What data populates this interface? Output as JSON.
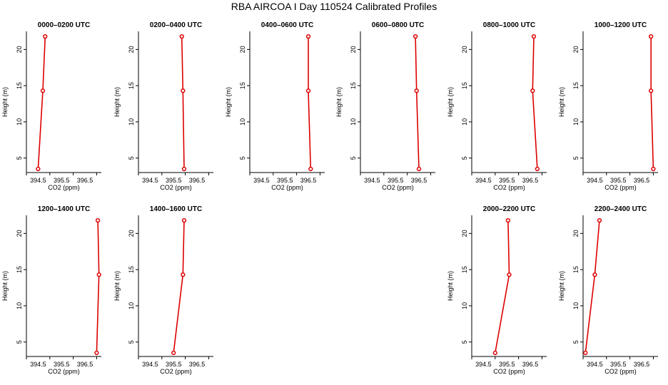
{
  "title": "RBA AIRCOA I  Day 110524  Calibrated Profiles",
  "colors": {
    "series": "#dd0000",
    "axis": "#000000"
  },
  "chart_data": [
    {
      "type": "line",
      "title": "0000–0200 UTC",
      "xlabel": "CO2 (ppm)",
      "ylabel": "Height (m)",
      "xlim": [
        394.0,
        397.2
      ],
      "ylim": [
        3,
        22.5
      ],
      "xticks": [
        "394.5",
        "395.5",
        "396.5"
      ],
      "yticks": [
        "5",
        "10",
        "15",
        "20"
      ],
      "x": [
        394.5,
        394.7,
        394.8
      ],
      "y": [
        3.5,
        14.3,
        21.8
      ]
    },
    {
      "type": "line",
      "title": "0200–0400 UTC",
      "xlabel": "CO2 (ppm)",
      "ylabel": "Height (m)",
      "xlim": [
        394.0,
        397.2
      ],
      "ylim": [
        3,
        22.5
      ],
      "xticks": [
        "394.5",
        "395.5",
        "396.5"
      ],
      "yticks": [
        "5",
        "10",
        "15",
        "20"
      ],
      "x": [
        395.95,
        395.9,
        395.85
      ],
      "y": [
        3.5,
        14.3,
        21.8
      ]
    },
    {
      "type": "line",
      "title": "0400–0600 UTC",
      "xlabel": "CO2 (ppm)",
      "ylabel": "Height (m)",
      "xlim": [
        394.0,
        397.2
      ],
      "ylim": [
        3,
        22.5
      ],
      "xticks": [
        "394.5",
        "395.5",
        "396.5"
      ],
      "yticks": [
        "5",
        "10",
        "15",
        "20"
      ],
      "x": [
        396.6,
        396.5,
        396.5
      ],
      "y": [
        3.5,
        14.3,
        21.8
      ]
    },
    {
      "type": "line",
      "title": "0600–0800 UTC",
      "xlabel": "CO2 (ppm)",
      "ylabel": "Height (m)",
      "xlim": [
        394.0,
        397.2
      ],
      "ylim": [
        3,
        22.5
      ],
      "xticks": [
        "394.5",
        "395.5",
        "396.5"
      ],
      "yticks": [
        "5",
        "10",
        "15",
        "20"
      ],
      "x": [
        396.5,
        396.4,
        396.35
      ],
      "y": [
        3.5,
        14.3,
        21.8
      ]
    },
    {
      "type": "line",
      "title": "0800–1000 UTC",
      "xlabel": "CO2 (ppm)",
      "ylabel": "Height (m)",
      "xlim": [
        394.0,
        397.2
      ],
      "ylim": [
        3,
        22.5
      ],
      "xticks": [
        "394.5",
        "395.5",
        "396.5"
      ],
      "yticks": [
        "5",
        "10",
        "15",
        "20"
      ],
      "x": [
        396.8,
        396.6,
        396.65
      ],
      "y": [
        3.5,
        14.3,
        21.8
      ]
    },
    {
      "type": "line",
      "title": "1000–1200 UTC",
      "xlabel": "CO2 (ppm)",
      "ylabel": "Height (m)",
      "xlim": [
        394.0,
        397.2
      ],
      "ylim": [
        3,
        22.5
      ],
      "xticks": [
        "394.5",
        "395.5",
        "396.5"
      ],
      "yticks": [
        "5",
        "10",
        "15",
        "20"
      ],
      "x": [
        397.0,
        396.9,
        396.9
      ],
      "y": [
        3.5,
        14.3,
        21.8
      ]
    },
    {
      "type": "line",
      "title": "1200–1400 UTC",
      "xlabel": "CO2 (ppm)",
      "ylabel": "Height (m)",
      "xlim": [
        394.0,
        397.2
      ],
      "ylim": [
        3,
        22.5
      ],
      "xticks": [
        "394.5",
        "395.5",
        "396.5"
      ],
      "yticks": [
        "5",
        "10",
        "15",
        "20"
      ],
      "x": [
        397.0,
        397.1,
        397.05
      ],
      "y": [
        3.5,
        14.3,
        21.8
      ]
    },
    {
      "type": "line",
      "title": "1400–1600 UTC",
      "xlabel": "CO2 (ppm)",
      "ylabel": "Height (m)",
      "xlim": [
        394.0,
        397.2
      ],
      "ylim": [
        3,
        22.5
      ],
      "xticks": [
        "394.5",
        "395.5",
        "396.5"
      ],
      "yticks": [
        "5",
        "10",
        "15",
        "20"
      ],
      "x": [
        395.5,
        395.9,
        395.95
      ],
      "y": [
        3.5,
        14.3,
        21.8
      ]
    },
    {
      "type": "line",
      "title": "2000–2200 UTC",
      "xlabel": "CO2 (ppm)",
      "ylabel": "Height (m)",
      "xlim": [
        394.0,
        397.2
      ],
      "ylim": [
        3,
        22.5
      ],
      "xticks": [
        "394.5",
        "395.5",
        "396.5"
      ],
      "yticks": [
        "5",
        "10",
        "15",
        "20"
      ],
      "x": [
        395.0,
        395.6,
        395.55
      ],
      "y": [
        3.5,
        14.3,
        21.8
      ]
    },
    {
      "type": "line",
      "title": "2200–2400 UTC",
      "xlabel": "CO2 (ppm)",
      "ylabel": "Height (m)",
      "xlim": [
        394.0,
        397.2
      ],
      "ylim": [
        3,
        22.5
      ],
      "xticks": [
        "394.5",
        "395.5",
        "396.5"
      ],
      "yticks": [
        "5",
        "10",
        "15",
        "20"
      ],
      "x": [
        394.1,
        394.5,
        394.7
      ],
      "y": [
        3.5,
        14.3,
        21.8
      ]
    }
  ]
}
